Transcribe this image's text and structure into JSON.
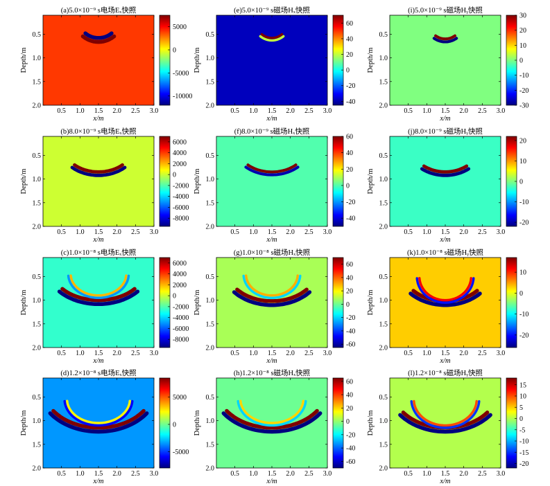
{
  "figure": {
    "ylabel": "Depth/m",
    "xlabel": "x/m",
    "x_ticks": [
      "0.5",
      "1.0",
      "1.5",
      "2.0",
      "2.5",
      "3.0"
    ],
    "y_ticks": [
      "0.5",
      "1.0",
      "1.5",
      "2.0"
    ]
  },
  "colors": {
    "colormap": [
      "#00007f",
      "#0000ff",
      "#0080ff",
      "#00ffff",
      "#80ff80",
      "#ffff00",
      "#ff8000",
      "#ff0000",
      "#7f0000"
    ],
    "axis": "#000000"
  },
  "chart_data": [
    {
      "id": "a",
      "type": "heatmap",
      "title": "(a)5.0×10⁻⁹ s电场Eₓ快照",
      "xlabel": "x/m",
      "ylabel": "Depth/m",
      "xlim": [
        0,
        3.0
      ],
      "ylim": [
        2.0,
        0.1
      ],
      "clim": [
        -12000,
        7500
      ],
      "cbar_ticks": [
        "5000",
        "0",
        "-5000",
        "-10000"
      ],
      "cbar_tick_values": [
        5000,
        0,
        -5000,
        -10000
      ],
      "background": 4000,
      "bands": [
        {
          "cx": 1.5,
          "cy": 0.16,
          "rx": 0.55,
          "ry": 0.42,
          "values": [
            -12000,
            7500
          ],
          "width": 0.08,
          "sweep": 1.4
        }
      ]
    },
    {
      "id": "e",
      "type": "heatmap",
      "title": "(e)5.0×10⁻⁹ s磁场Hₓ快照",
      "xlabel": "x/m",
      "ylabel": "Depth/m",
      "xlim": [
        0,
        3.0
      ],
      "ylim": [
        2.0,
        0.1
      ],
      "clim": [
        -45,
        70
      ],
      "cbar_ticks": [
        "60",
        "40",
        "20",
        "0",
        "-20",
        "-40"
      ],
      "cbar_tick_values": [
        60,
        40,
        20,
        0,
        -20,
        -40
      ],
      "background": -38,
      "bands": [
        {
          "cx": 1.5,
          "cy": 0.2,
          "rx": 0.45,
          "ry": 0.38,
          "values": [
            70,
            20
          ],
          "width": 0.05,
          "sweep": 1.3
        }
      ]
    },
    {
      "id": "i",
      "type": "heatmap",
      "title": "(i)5.0×10⁻⁹ s磁场Hᵧ快照",
      "xlabel": "x/m",
      "ylabel": "Depth/m",
      "xlim": [
        0,
        3.0
      ],
      "ylim": [
        2.0,
        0.1
      ],
      "clim": [
        -30,
        30
      ],
      "cbar_ticks": [
        "30",
        "20",
        "10",
        "0",
        "-10",
        "-20",
        "-30"
      ],
      "cbar_tick_values": [
        30,
        20,
        10,
        0,
        -10,
        -20,
        -30
      ],
      "background": 0,
      "bands": [
        {
          "cx": 1.5,
          "cy": 0.15,
          "rx": 0.5,
          "ry": 0.45,
          "values": [
            30,
            -30
          ],
          "width": 0.06,
          "sweep": 1.1
        }
      ]
    },
    {
      "id": "b",
      "type": "heatmap",
      "title": "(b)8.0×10⁻⁹ s电场Eₓ快照",
      "xlabel": "x/m",
      "ylabel": "Depth/m",
      "xlim": [
        0,
        3.0
      ],
      "ylim": [
        2.0,
        0.1
      ],
      "clim": [
        -9500,
        7000
      ],
      "cbar_ticks": [
        "6000",
        "4000",
        "2000",
        "0",
        "-2000",
        "-4000",
        "-6000",
        "-8000"
      ],
      "cbar_tick_values": [
        6000,
        4000,
        2000,
        0,
        -2000,
        -4000,
        -6000,
        -8000
      ],
      "background": 0,
      "bands": [
        {
          "cx": 1.5,
          "cy": 0.3,
          "rx": 0.95,
          "ry": 0.55,
          "values": [
            7000,
            -9500
          ],
          "width": 0.07,
          "sweep": 1.5
        }
      ]
    },
    {
      "id": "f",
      "type": "heatmap",
      "title": "(f)8.0×10⁻⁹ s磁场Hₓ快照",
      "xlabel": "x/m",
      "ylabel": "Depth/m",
      "xlim": [
        0,
        3.0
      ],
      "ylim": [
        2.0,
        0.1
      ],
      "clim": [
        -50,
        60
      ],
      "cbar_ticks": [
        "60",
        "40",
        "20",
        "0",
        "-20",
        "-40"
      ],
      "cbar_tick_values": [
        60,
        40,
        20,
        0,
        -20,
        -40
      ],
      "background": 0,
      "bands": [
        {
          "cx": 1.5,
          "cy": 0.3,
          "rx": 0.95,
          "ry": 0.55,
          "values": [
            60,
            -45
          ],
          "width": 0.06,
          "sweep": 1.5
        }
      ]
    },
    {
      "id": "j",
      "type": "heatmap",
      "title": "(j)8.0×10⁻⁹ s磁场Hᵧ快照",
      "xlabel": "x/m",
      "ylabel": "Depth/m",
      "xlim": [
        0,
        3.0
      ],
      "ylim": [
        2.0,
        0.1
      ],
      "clim": [
        -22,
        22
      ],
      "cbar_ticks": [
        "20",
        "10",
        "0",
        "-10",
        "-20"
      ],
      "cbar_tick_values": [
        20,
        10,
        0,
        -10,
        -20
      ],
      "background": -3,
      "bands": [
        {
          "cx": 1.5,
          "cy": 0.25,
          "rx": 0.95,
          "ry": 0.6,
          "values": [
            22,
            -22
          ],
          "width": 0.07,
          "sweep": 1.3
        }
      ]
    },
    {
      "id": "c",
      "type": "heatmap",
      "title": "(c)1.0×10⁻⁸ s电场Eₓ快照",
      "xlabel": "x/m",
      "ylabel": "Depth/m",
      "xlim": [
        0,
        3.0
      ],
      "ylim": [
        2.0,
        0.1
      ],
      "clim": [
        -9500,
        7000
      ],
      "cbar_ticks": [
        "6000",
        "4000",
        "2000",
        "0",
        "-2000",
        "-4000",
        "-6000",
        "-8000"
      ],
      "cbar_tick_values": [
        6000,
        4000,
        2000,
        0,
        -2000,
        -4000,
        -6000,
        -8000
      ],
      "background": -2500,
      "bands": [
        {
          "cx": 1.5,
          "cy": 0.3,
          "rx": 1.3,
          "ry": 0.7,
          "values": [
            7000,
            -9500
          ],
          "width": 0.08,
          "sweep": 1.7
        },
        {
          "cx": 1.5,
          "cy": 0.45,
          "rx": 0.75,
          "ry": 0.45,
          "values": [
            2000,
            -5000
          ],
          "width": 0.05,
          "sweep": 3.0
        }
      ]
    },
    {
      "id": "g",
      "type": "heatmap",
      "title": "(g)1.0×10⁻⁸ s磁场Hₓ快照",
      "xlabel": "x/m",
      "ylabel": "Depth/m",
      "xlim": [
        0,
        3.0
      ],
      "ylim": [
        2.0,
        0.1
      ],
      "clim": [
        -65,
        70
      ],
      "cbar_ticks": [
        "60",
        "40",
        "20",
        "0",
        "-20",
        "-40",
        "-60"
      ],
      "cbar_tick_values": [
        60,
        40,
        20,
        0,
        -20,
        -40,
        -60
      ],
      "background": 8,
      "bands": [
        {
          "cx": 1.5,
          "cy": 0.3,
          "rx": 1.25,
          "ry": 0.72,
          "values": [
            70,
            -65
          ],
          "width": 0.08,
          "sweep": 1.7
        },
        {
          "cx": 1.5,
          "cy": 0.45,
          "rx": 0.7,
          "ry": 0.45,
          "values": [
            30,
            -20
          ],
          "width": 0.05,
          "sweep": 3.0
        }
      ]
    },
    {
      "id": "k",
      "type": "heatmap",
      "title": "(k)1.0×10⁻⁸ s磁场Hᵧ快照",
      "xlabel": "x/m",
      "ylabel": "Depth/m",
      "xlim": [
        0,
        3.0
      ],
      "ylim": [
        2.0,
        0.1
      ],
      "clim": [
        -26,
        17
      ],
      "cbar_ticks": [
        "10",
        "0",
        "-10",
        "-20"
      ],
      "cbar_tick_values": [
        10,
        0,
        -10,
        -20
      ],
      "background": 3,
      "bands": [
        {
          "cx": 1.5,
          "cy": 0.3,
          "rx": 1.2,
          "ry": 0.72,
          "values": [
            17,
            -26
          ],
          "width": 0.08,
          "sweep": 1.6
        },
        {
          "cx": 1.5,
          "cy": 0.5,
          "rx": 0.7,
          "ry": 0.5,
          "values": [
            12,
            -20
          ],
          "width": 0.05,
          "sweep": 3.0
        }
      ]
    },
    {
      "id": "d",
      "type": "heatmap",
      "title": "(d)1.2×10⁻⁸ s电场Eₓ快照",
      "xlabel": "x/m",
      "ylabel": "Depth/m",
      "xlim": [
        0,
        3.0
      ],
      "ylim": [
        2.0,
        0.1
      ],
      "clim": [
        -8000,
        8500
      ],
      "cbar_ticks": [
        "5000",
        "0",
        "-5000"
      ],
      "cbar_tick_values": [
        5000,
        0,
        -5000
      ],
      "background": -3500,
      "bands": [
        {
          "cx": 1.5,
          "cy": 0.3,
          "rx": 1.5,
          "ry": 0.85,
          "values": [
            8500,
            -8000
          ],
          "width": 0.08,
          "sweep": 1.9
        },
        {
          "cx": 1.5,
          "cy": 0.55,
          "rx": 0.85,
          "ry": 0.5,
          "values": [
            2500,
            -6000
          ],
          "width": 0.05,
          "sweep": 3.0
        }
      ]
    },
    {
      "id": "h",
      "type": "heatmap",
      "title": "(h)1.2×10⁻⁸ s磁场Hₓ快照",
      "xlabel": "x/m",
      "ylabel": "Depth/m",
      "xlim": [
        0,
        3.0
      ],
      "ylim": [
        2.0,
        0.1
      ],
      "clim": [
        -70,
        65
      ],
      "cbar_ticks": [
        "60",
        "40",
        "20",
        "0",
        "-20",
        "-40",
        "-60"
      ],
      "cbar_tick_values": [
        60,
        40,
        20,
        0,
        -20,
        -40,
        -60
      ],
      "background": -5,
      "bands": [
        {
          "cx": 1.5,
          "cy": 0.3,
          "rx": 1.5,
          "ry": 0.85,
          "values": [
            65,
            -70
          ],
          "width": 0.08,
          "sweep": 1.9
        },
        {
          "cx": 1.5,
          "cy": 0.55,
          "rx": 0.85,
          "ry": 0.5,
          "values": [
            20,
            -25
          ],
          "width": 0.05,
          "sweep": 3.0
        }
      ]
    },
    {
      "id": "l",
      "type": "heatmap",
      "title": "(l)1.2×10⁻⁸ s磁场Hᵧ快照",
      "xlabel": "x/m",
      "ylabel": "Depth/m",
      "xlim": [
        0,
        3.0
      ],
      "ylim": [
        2.0,
        0.1
      ],
      "clim": [
        -22,
        18
      ],
      "cbar_ticks": [
        "15",
        "10",
        "5",
        "0",
        "-5",
        "-10",
        "-15",
        "-20"
      ],
      "cbar_tick_values": [
        15,
        10,
        5,
        0,
        -5,
        -10,
        -15,
        -20
      ],
      "background": 0,
      "bands": [
        {
          "cx": 1.5,
          "cy": 0.3,
          "rx": 1.45,
          "ry": 0.85,
          "values": [
            18,
            -22
          ],
          "width": 0.08,
          "sweep": 1.8
        },
        {
          "cx": 1.5,
          "cy": 0.55,
          "rx": 0.85,
          "ry": 0.55,
          "values": [
            10,
            -15
          ],
          "width": 0.05,
          "sweep": 3.0
        }
      ]
    }
  ]
}
